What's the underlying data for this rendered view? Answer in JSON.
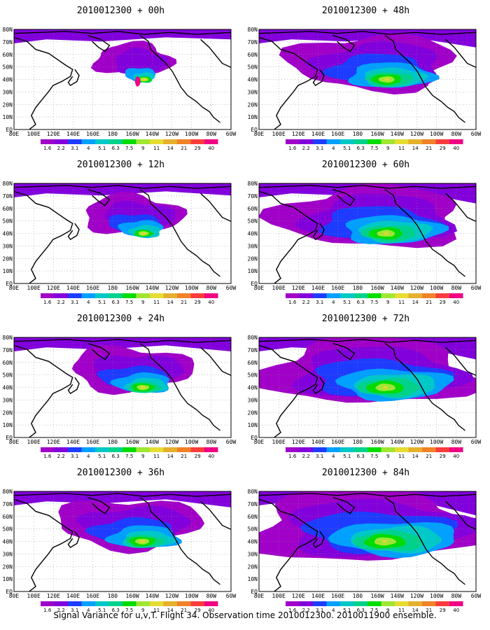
{
  "colorbar": {
    "labels": [
      "1.6",
      "2.2",
      "3.1",
      "4",
      "5.1",
      "6.3",
      "7.5",
      "9",
      "11",
      "14",
      "21",
      "29",
      "40"
    ],
    "colors": [
      "#a000c8",
      "#8200dc",
      "#1e3cff",
      "#00a0ff",
      "#00c8c8",
      "#00d28c",
      "#00dc00",
      "#a0e632",
      "#e6dc32",
      "#e6af2d",
      "#f08228",
      "#fa3c3c",
      "#f00082"
    ]
  },
  "axes": {
    "lat_labels": [
      "80N",
      "70N",
      "60N",
      "50N",
      "40N",
      "30N",
      "20N",
      "10N",
      "EQ"
    ],
    "lon_labels": [
      "80E",
      "100E",
      "120E",
      "140E",
      "160E",
      "180",
      "160W",
      "140W",
      "120W",
      "100W",
      "80W",
      "60W"
    ]
  },
  "panels": [
    {
      "title": "2010012300 + 00h",
      "level": 0
    },
    {
      "title": "2010012300 + 48h",
      "level": 4
    },
    {
      "title": "2010012300 + 12h",
      "level": 1
    },
    {
      "title": "2010012300 + 60h",
      "level": 5
    },
    {
      "title": "2010012300 + 24h",
      "level": 2
    },
    {
      "title": "2010012300 + 72h",
      "level": 6
    },
    {
      "title": "2010012300 + 36h",
      "level": 3
    },
    {
      "title": "2010012300 + 84h",
      "level": 7
    }
  ],
  "caption": "Signal Variance for u,v,T. Flight 34. Observation time 2010012300. 2010011900 ensemble."
}
